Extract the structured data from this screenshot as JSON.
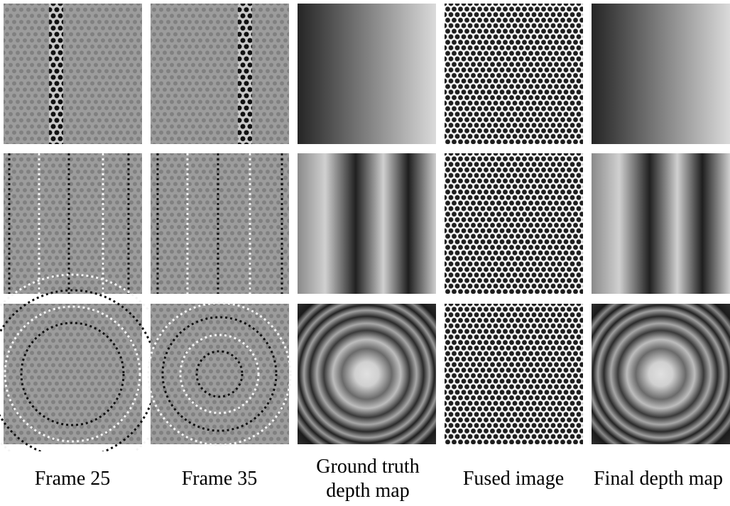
{
  "captions": [
    "Frame 25",
    "Frame 35",
    "Ground truth depth map",
    "Fused image",
    "Final depth map"
  ]
}
